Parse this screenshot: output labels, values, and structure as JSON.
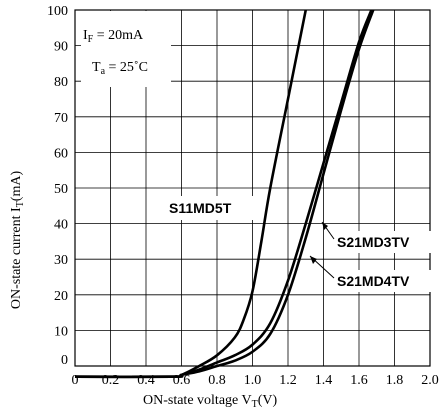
{
  "chart_data": {
    "type": "line",
    "xlabel": "ON-state voltage  V",
    "xlabel_sub": "T",
    "xlabel_unit": "(V)",
    "ylabel": "ON-state current I",
    "ylabel_sub": "T",
    "ylabel_unit": "(mA)",
    "xlim": [
      0,
      2.0
    ],
    "ylim": [
      0,
      100
    ],
    "grid": true,
    "x_ticks": [
      "0",
      "0.2",
      "0.4",
      "0.6",
      "0.8",
      "1.0",
      "1.2",
      "1.4",
      "1.6",
      "1.8",
      "2.0"
    ],
    "y_ticks": [
      "0",
      "10",
      "20",
      "30",
      "40",
      "50",
      "60",
      "70",
      "80",
      "90",
      "100"
    ],
    "conditions": {
      "if_main": "I",
      "if_sub": "F",
      "if_value": " = 20mA",
      "ta_main": "T",
      "ta_sub": "a",
      "ta_value": " = 25˚C"
    },
    "series": [
      {
        "name": "S11MD5T",
        "x": [
          0,
          0.55,
          0.6,
          0.7,
          0.8,
          0.9,
          0.95,
          1.0,
          1.05,
          1.1,
          1.2,
          1.3
        ],
        "y": [
          -3,
          -3,
          -2.5,
          0,
          3,
          8,
          13,
          21,
          35,
          50,
          75,
          100
        ]
      },
      {
        "name": "S21MD3TV",
        "x": [
          0,
          0.55,
          0.6,
          0.7,
          0.8,
          0.9,
          1.0,
          1.1,
          1.2,
          1.3,
          1.4,
          1.5,
          1.6,
          1.67
        ],
        "y": [
          -3,
          -3,
          -2.5,
          -1,
          1,
          3,
          6,
          12,
          24,
          40,
          57,
          74,
          91,
          100
        ]
      },
      {
        "name": "S21MD4TV",
        "x": [
          0,
          0.55,
          0.6,
          0.7,
          0.8,
          0.9,
          1.0,
          1.1,
          1.2,
          1.3,
          1.4,
          1.5,
          1.6,
          1.68
        ],
        "y": [
          -3,
          -3,
          -2.5,
          -1.5,
          0,
          1.5,
          4,
          9,
          20,
          36,
          54,
          72,
          89,
          100
        ]
      }
    ]
  }
}
